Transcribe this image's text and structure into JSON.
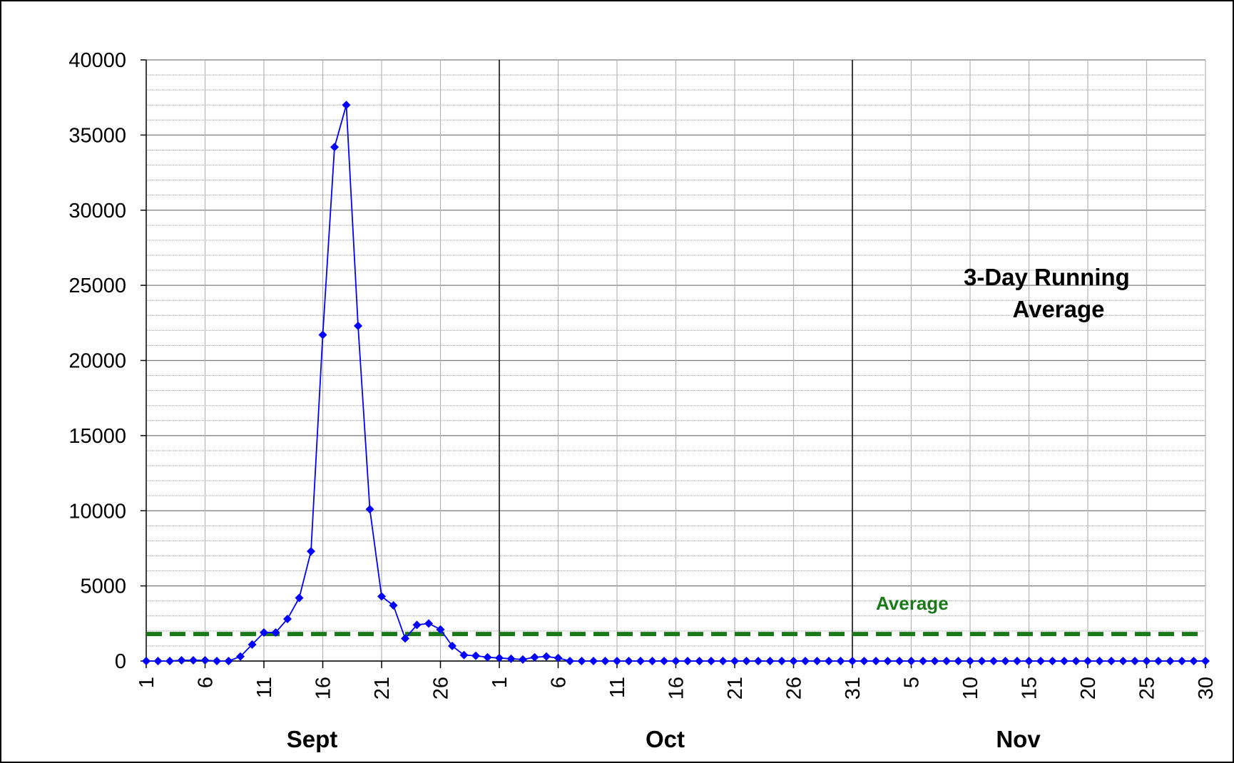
{
  "chart_data": {
    "type": "line",
    "title": "",
    "annotation": "3-Day Running Average",
    "annotation_lines": [
      "3-Day Running",
      "Average"
    ],
    "average_label": "Average",
    "average_value": 1800,
    "ylim": [
      0,
      40000
    ],
    "y_ticks": [
      0,
      5000,
      10000,
      15000,
      20000,
      25000,
      30000,
      35000,
      40000
    ],
    "y_minor_step": 1000,
    "x_count": 91,
    "x_tick_labels": [
      {
        "index": 0,
        "label": "1"
      },
      {
        "index": 5,
        "label": "6"
      },
      {
        "index": 10,
        "label": "11"
      },
      {
        "index": 15,
        "label": "16"
      },
      {
        "index": 20,
        "label": "21"
      },
      {
        "index": 25,
        "label": "26"
      },
      {
        "index": 30,
        "label": "1"
      },
      {
        "index": 35,
        "label": "6"
      },
      {
        "index": 40,
        "label": "11"
      },
      {
        "index": 45,
        "label": "16"
      },
      {
        "index": 50,
        "label": "21"
      },
      {
        "index": 55,
        "label": "26"
      },
      {
        "index": 60,
        "label": "31"
      },
      {
        "index": 65,
        "label": "5"
      },
      {
        "index": 70,
        "label": "10"
      },
      {
        "index": 75,
        "label": "15"
      },
      {
        "index": 80,
        "label": "20"
      },
      {
        "index": 85,
        "label": "25"
      },
      {
        "index": 90,
        "label": "30"
      }
    ],
    "months": [
      {
        "label": "Sept",
        "start": 0,
        "end": 30
      },
      {
        "label": "Oct",
        "start": 30,
        "end": 60
      },
      {
        "label": "Nov",
        "start": 60,
        "end": 90
      }
    ],
    "month_boundaries": [
      30,
      60
    ],
    "grid": true,
    "series": [
      {
        "color": "#0000ff",
        "average_color": "#1a7a1a",
        "values": [
          0,
          0,
          0,
          50,
          50,
          50,
          0,
          0,
          300,
          1100,
          1900,
          1900,
          2800,
          4200,
          7300,
          21700,
          34200,
          37000,
          22300,
          10100,
          4300,
          3700,
          1500,
          2400,
          2500,
          2100,
          1000,
          400,
          350,
          250,
          200,
          150,
          100,
          250,
          300,
          200,
          0,
          0,
          0,
          0,
          0,
          0,
          0,
          0,
          0,
          0,
          0,
          0,
          0,
          0,
          0,
          0,
          0,
          0,
          0,
          0,
          0,
          0,
          0,
          0,
          0,
          0,
          0,
          0,
          0,
          0,
          0,
          0,
          0,
          0,
          0,
          0,
          0,
          0,
          0,
          0,
          0,
          0,
          0,
          0,
          0,
          0,
          0,
          0,
          0,
          0,
          0,
          0,
          0,
          0,
          0
        ]
      }
    ]
  }
}
